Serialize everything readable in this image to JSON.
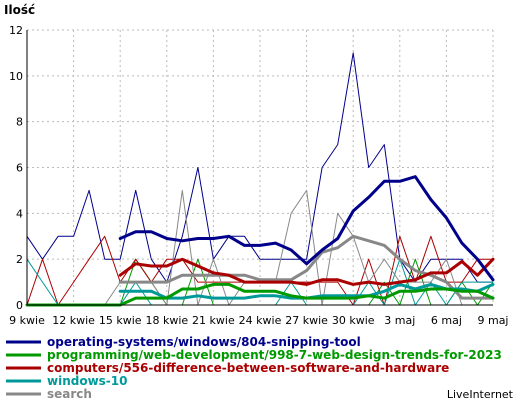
{
  "chart_data": {
    "type": "line",
    "ylabel": "Ilość",
    "ylim": [
      0,
      12
    ],
    "yticks": [
      0,
      2,
      4,
      6,
      8,
      10,
      12
    ],
    "x": [
      "9 kwie",
      "10 kwie",
      "11 kwie",
      "12 kwie",
      "13 kwie",
      "14 kwie",
      "15 kwie",
      "16 kwie",
      "17 kwie",
      "18 kwie",
      "19 kwie",
      "20 kwie",
      "21 kwie",
      "22 kwie",
      "23 kwie",
      "24 kwie",
      "25 kwie",
      "26 kwie",
      "27 kwie",
      "28 kwie",
      "29 kwie",
      "30 kwie",
      "1 maj",
      "2 maj",
      "3 maj",
      "4 maj",
      "5 maj",
      "6 maj",
      "7 maj",
      "8 maj",
      "9 maj"
    ],
    "xtick_labels": [
      "9 kwie",
      "12 kwie",
      "15 kwie",
      "18 kwie",
      "21 kwie",
      "24 kwie",
      "27 kwie",
      "30 kwie",
      "3 maj",
      "6 maj",
      "9 maj"
    ],
    "xtick_index": [
      0,
      3,
      6,
      9,
      12,
      15,
      18,
      21,
      24,
      27,
      30
    ],
    "grid": true,
    "legend_position": "bottom",
    "series": [
      {
        "name": "operating-systems/windows/804-snipping-tool",
        "color": "#00008b",
        "raw": [
          3,
          2,
          3,
          3,
          5,
          2,
          2,
          5,
          2,
          1,
          3,
          6,
          2,
          3,
          3,
          2,
          2,
          2,
          2,
          6,
          7,
          11,
          6,
          7,
          2,
          1,
          2,
          2,
          2,
          1,
          1
        ],
        "avg": [
          null,
          null,
          null,
          null,
          null,
          null,
          2.9,
          3.2,
          3.2,
          2.9,
          2.8,
          2.9,
          2.9,
          3.0,
          2.6,
          2.6,
          2.7,
          2.4,
          1.8,
          2.4,
          2.9,
          4.1,
          4.7,
          5.4,
          5.4,
          5.6,
          4.6,
          3.8,
          2.7,
          2.0,
          1.1
        ]
      },
      {
        "name": "programming/web-development/998-7-web-design-trends-for-2023",
        "color": "#009900",
        "raw": [
          0,
          0,
          0,
          0,
          0,
          0,
          0,
          2,
          1,
          0,
          0,
          2,
          0,
          0,
          0,
          0,
          0,
          0,
          0,
          0,
          0,
          0,
          0,
          1,
          0,
          2,
          0,
          0,
          1,
          0,
          1
        ],
        "avg": [
          0,
          0,
          0,
          0,
          0,
          0,
          0,
          0.3,
          0.3,
          0.3,
          0.7,
          0.7,
          0.9,
          0.9,
          0.6,
          0.6,
          0.6,
          0.4,
          0.3,
          0.3,
          0.3,
          0.3,
          0.4,
          0.3,
          0.6,
          0.6,
          0.7,
          0.7,
          0.6,
          0.6,
          0.3
        ]
      },
      {
        "name": "computers/556-difference-between-software-and-hardware",
        "color": "#aa0000",
        "raw": [
          0,
          2,
          0,
          1,
          2,
          3,
          1,
          2,
          1,
          2,
          2,
          1,
          1,
          1,
          1,
          1,
          1,
          1,
          1,
          1,
          1,
          0,
          2,
          0,
          3,
          1,
          3,
          1,
          1,
          2,
          2
        ],
        "avg": [
          null,
          null,
          null,
          null,
          null,
          null,
          1.3,
          1.8,
          1.7,
          1.7,
          2.0,
          1.7,
          1.4,
          1.3,
          1.0,
          1.0,
          1.0,
          1.0,
          0.9,
          1.1,
          1.1,
          0.9,
          1.0,
          0.9,
          1.0,
          1.1,
          1.4,
          1.4,
          1.9,
          1.3,
          2.0
        ]
      },
      {
        "name": "windows-10",
        "color": "#009999",
        "raw": [
          2,
          1,
          0,
          0,
          0,
          0,
          0,
          1,
          0,
          0,
          0,
          0,
          0,
          0,
          0,
          0,
          0,
          1,
          0,
          0,
          0,
          0,
          1,
          0,
          2,
          0,
          1,
          0,
          1,
          1,
          1
        ],
        "avg": [
          null,
          null,
          null,
          null,
          null,
          null,
          0.6,
          0.6,
          0.6,
          0.3,
          0.3,
          0.4,
          0.3,
          0.3,
          0.3,
          0.4,
          0.4,
          0.3,
          0.3,
          0.4,
          0.4,
          0.4,
          0.4,
          0.6,
          0.9,
          0.7,
          0.9,
          0.7,
          0.7,
          0.6,
          0.9
        ]
      },
      {
        "name": "search",
        "color": "#888888",
        "raw": [
          0,
          0,
          0,
          0,
          0,
          0,
          1,
          1,
          1,
          0,
          5,
          0,
          2,
          0,
          1,
          1,
          1,
          4,
          5,
          0,
          4,
          3,
          1,
          2,
          1,
          1,
          1,
          2,
          0,
          0,
          0
        ],
        "avg": [
          null,
          null,
          null,
          null,
          null,
          null,
          1.0,
          1.0,
          1.0,
          1.0,
          1.3,
          1.3,
          1.3,
          1.3,
          1.3,
          1.1,
          1.1,
          1.1,
          1.5,
          2.3,
          2.5,
          3.0,
          2.8,
          2.6,
          2.0,
          1.5,
          1.3,
          1.0,
          0.3,
          0.3,
          0.3
        ]
      }
    ]
  },
  "brand": "LiveInternet"
}
